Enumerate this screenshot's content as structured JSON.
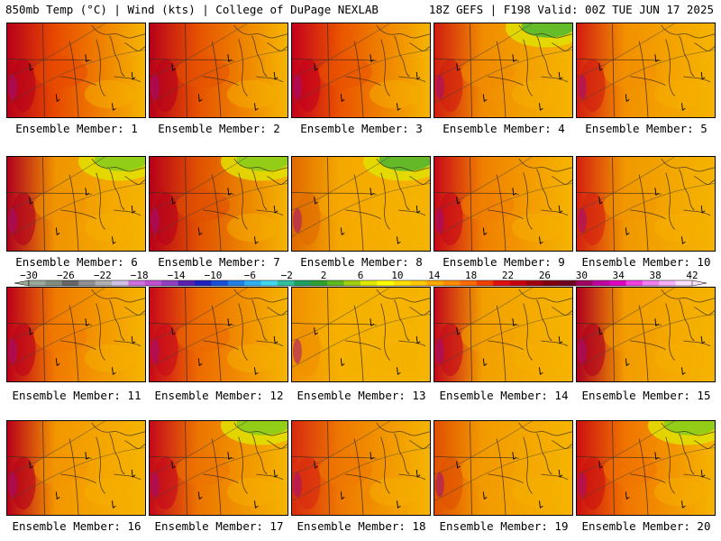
{
  "header": {
    "left": "850mb Temp (°C) | Wind (kts) | College of DuPage NEXLAB",
    "right": "18Z GEFS | F198 Valid: 00Z TUE JUN 17 2025"
  },
  "panels": [
    {
      "label": "Ensemble Member: 1",
      "tint": "#e84a00",
      "west": "#b8001a",
      "north": null
    },
    {
      "label": "Ensemble Member: 2",
      "tint": "#e65200",
      "west": "#b8001a",
      "north": null
    },
    {
      "label": "Ensemble Member: 3",
      "tint": "#ea5400",
      "west": "#c4001c",
      "north": null
    },
    {
      "label": "Ensemble Member: 4",
      "tint": "#f08c00",
      "west": "#d01d10",
      "north": "#56b82e"
    },
    {
      "label": "Ensemble Member: 5",
      "tint": "#f29000",
      "west": "#d21c10",
      "north": null
    },
    {
      "label": "Ensemble Member: 6",
      "tint": "#f09400",
      "west": "#b0001e",
      "north": "#8acc1a"
    },
    {
      "label": "Ensemble Member: 7",
      "tint": "#e05000",
      "west": "#b8001a",
      "north": "#8acc1a"
    },
    {
      "label": "Ensemble Member: 8",
      "tint": "#f5a800",
      "west": "#e06a00",
      "north": "#54b52c"
    },
    {
      "label": "Ensemble Member: 9",
      "tint": "#f08000",
      "west": "#c80818",
      "north": null
    },
    {
      "label": "Ensemble Member: 10",
      "tint": "#f09800",
      "west": "#d42010",
      "north": null
    },
    {
      "label": "Ensemble Member: 11",
      "tint": "#f07a00",
      "west": "#bc001a",
      "north": null
    },
    {
      "label": "Ensemble Member: 12",
      "tint": "#ec6a00",
      "west": "#c8081a",
      "north": null
    },
    {
      "label": "Ensemble Member: 13",
      "tint": "#f5b000",
      "west": "#f09000",
      "north": null
    },
    {
      "label": "Ensemble Member: 14",
      "tint": "#f2a000",
      "west": "#c4081a",
      "north": null
    },
    {
      "label": "Ensemble Member: 15",
      "tint": "#f29c00",
      "west": "#b0001e",
      "north": null
    },
    {
      "label": "Ensemble Member: 16",
      "tint": "#f29600",
      "west": "#b8001a",
      "north": null
    },
    {
      "label": "Ensemble Member: 17",
      "tint": "#ec7400",
      "west": "#c4081a",
      "north": "#8acc1a"
    },
    {
      "label": "Ensemble Member: 18",
      "tint": "#ee7800",
      "west": "#d82a10",
      "north": null
    },
    {
      "label": "Ensemble Member: 19",
      "tint": "#f29a00",
      "west": "#e05000",
      "north": null
    },
    {
      "label": "Ensemble Member: 20",
      "tint": "#f07400",
      "west": "#cc1010",
      "north": "#8acc1a"
    }
  ],
  "colorbar": {
    "ticks": [
      "-30",
      "-26",
      "-22",
      "-18",
      "-14",
      "-10",
      "-6",
      "-2",
      "2",
      "6",
      "10",
      "14",
      "18",
      "22",
      "26",
      "30",
      "34",
      "38",
      "42"
    ],
    "colors": [
      "#9aa89a",
      "#7f8f7f",
      "#666666",
      "#909090",
      "#b0b0b0",
      "#cfc0e6",
      "#d070e0",
      "#c050d0",
      "#9040c0",
      "#5a20b0",
      "#2020c0",
      "#1a50d8",
      "#2080e8",
      "#30b0f0",
      "#40d8f0",
      "#30c0a0",
      "#20a060",
      "#30a030",
      "#60b820",
      "#a0d010",
      "#e0e800",
      "#ffff00",
      "#ffe000",
      "#ffc800",
      "#ffa800",
      "#ff8c00",
      "#ff6a00",
      "#f04000",
      "#e01010",
      "#c80010",
      "#a00010",
      "#800010",
      "#700020",
      "#a00060",
      "#c000a0",
      "#e000c0",
      "#f040e0",
      "#f080f0",
      "#f8b0f8",
      "#fce0fc"
    ]
  }
}
